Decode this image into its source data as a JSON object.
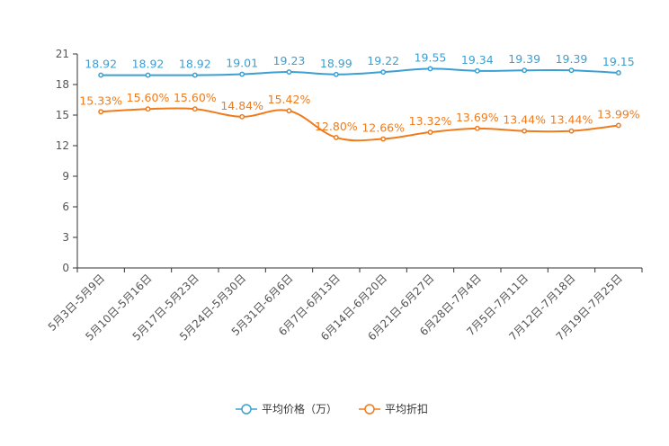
{
  "chart_data": {
    "type": "line",
    "categories": [
      "5月3日-5月9日",
      "5月10日-5月16日",
      "5月17日-5月23日",
      "5月24日-5月30日",
      "5月31日-6月6日",
      "6月7日-6月13日",
      "6月14日-6月20日",
      "6月21日-6月27日",
      "6月28日-7月4日",
      "7月5日-7月11日",
      "7月12日-7月18日",
      "7月19日-7月25日"
    ],
    "ylim": [
      0,
      21
    ],
    "yticks": [
      0,
      3,
      6,
      9,
      12,
      15,
      18,
      21
    ],
    "series": [
      {
        "name": "平均价格（万）",
        "color": "#3c9fd2",
        "values": [
          18.92,
          18.92,
          18.92,
          19.01,
          19.23,
          18.99,
          19.22,
          19.55,
          19.34,
          19.39,
          19.39,
          19.15
        ],
        "labels": [
          "18.92",
          "18.92",
          "18.92",
          "19.01",
          "19.23",
          "18.99",
          "19.22",
          "19.55",
          "19.34",
          "19.39",
          "19.39",
          "19.15"
        ]
      },
      {
        "name": "平均折扣",
        "color": "#f07b1c",
        "values": [
          15.33,
          15.6,
          15.6,
          14.84,
          15.42,
          12.8,
          12.66,
          13.32,
          13.69,
          13.44,
          13.44,
          13.99
        ],
        "labels": [
          "15.33%",
          "15.60%",
          "15.60%",
          "14.84%",
          "15.42%",
          "12.80%",
          "12.66%",
          "13.32%",
          "13.69%",
          "13.44%",
          "13.44%",
          "13.99%"
        ]
      }
    ],
    "legend_position": "bottom-center",
    "grid": false
  }
}
